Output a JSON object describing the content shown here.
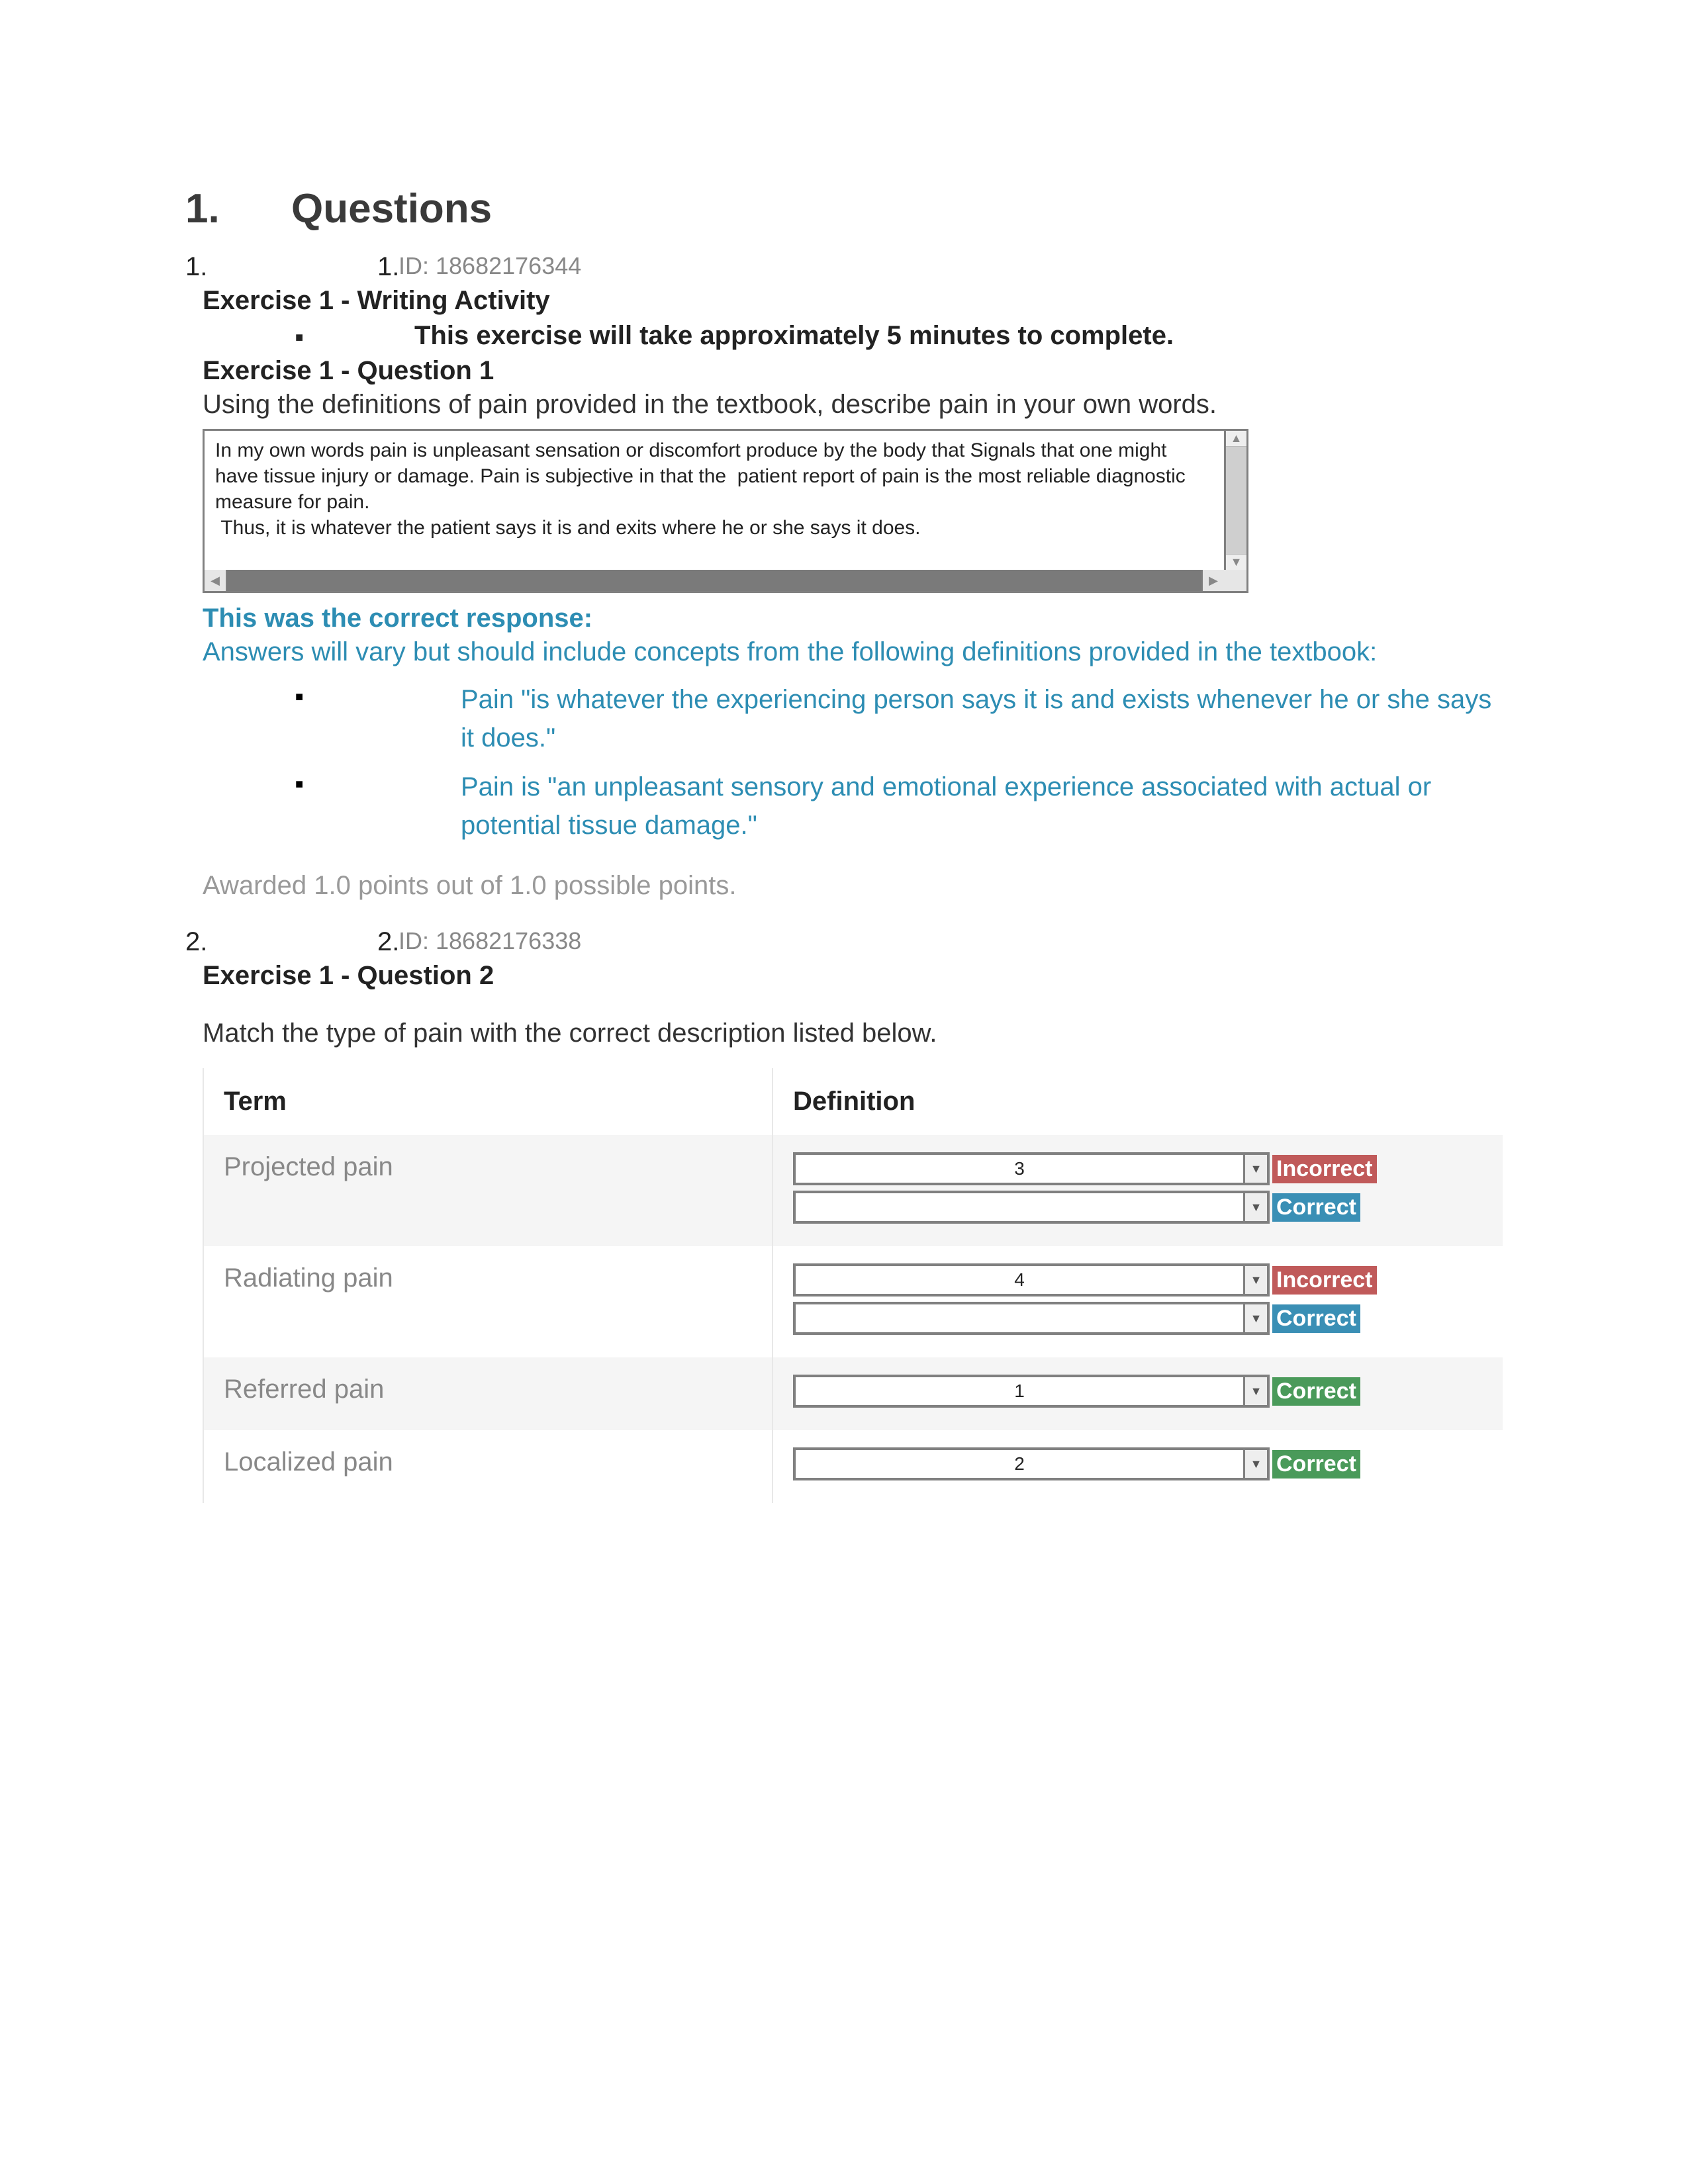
{
  "heading": {
    "number": "1.",
    "title": "Questions"
  },
  "q1": {
    "outerNum": "1.",
    "innerNum": "1.",
    "idLabel": "ID: ",
    "idValue": "18682176344",
    "exerciseTitle": "Exercise 1 - Writing Activity",
    "timeNote": "This exercise will take approximately 5 minutes to complete.",
    "questionHeading": "Exercise 1 - Question 1",
    "prompt": "Using the definitions of pain provided in the textbook, describe pain in your own words.",
    "response": "In my own words pain is unpleasant sensation or discomfort produce by the body that Signals that one might have tissue injury or damage. Pain is subjective in that the  patient report of pain is the most reliable diagnostic measure for pain.\n Thus, it is whatever the patient says it is and exits where he or she says it does.",
    "feedbackHead": "This was the correct response:",
    "feedbackIntro": "Answers will vary but should include concepts from the following definitions provided in the textbook:",
    "defs": [
      "Pain \"is whatever the experiencing person says it is and exists whenever he or she says it does.\"",
      "Pain is \"an unpleasant sensory and emotional experience associated with actual or potential tissue damage.\""
    ],
    "points": "Awarded 1.0 points out of 1.0 possible points."
  },
  "q2": {
    "outerNum": "2.",
    "innerNum": "2.",
    "idLabel": "ID: ",
    "idValue": "18682176338",
    "questionHeading": "Exercise 1 - Question 2",
    "prompt": "Match the type of pain with the correct description listed below.",
    "headers": {
      "term": "Term",
      "definition": "Definition"
    },
    "rows": [
      {
        "term": "Projected pain",
        "selections": [
          {
            "value": "3",
            "tag": "Incorrect",
            "tagClass": "incorrect"
          },
          {
            "value": "",
            "tag": "Correct",
            "tagClass": "correct-blue"
          }
        ]
      },
      {
        "term": "Radiating pain",
        "selections": [
          {
            "value": "4",
            "tag": "Incorrect",
            "tagClass": "incorrect"
          },
          {
            "value": "",
            "tag": "Correct",
            "tagClass": "correct-blue"
          }
        ]
      },
      {
        "term": "Referred pain",
        "selections": [
          {
            "value": "1",
            "tag": "Correct",
            "tagClass": "correct-green"
          }
        ]
      },
      {
        "term": "Localized pain",
        "selections": [
          {
            "value": "2",
            "tag": "Correct",
            "tagClass": "correct-green"
          }
        ]
      }
    ]
  },
  "colors": {
    "link": "#2d8db3",
    "muted": "#888888",
    "incorrect": "#c05a5a",
    "correctBlue": "#3a8fb5",
    "correctGreen": "#4a9a5a"
  }
}
